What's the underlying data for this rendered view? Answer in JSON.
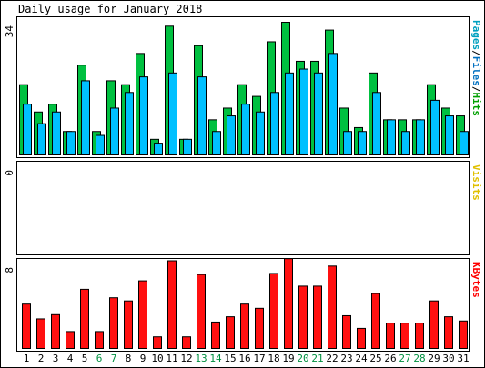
{
  "chart_data": {
    "type": "bar",
    "title": "Daily usage for January 2018",
    "categories": [
      "1",
      "2",
      "3",
      "4",
      "5",
      "6",
      "7",
      "8",
      "9",
      "10",
      "11",
      "12",
      "13",
      "14",
      "15",
      "16",
      "17",
      "18",
      "19",
      "20",
      "21",
      "22",
      "23",
      "24",
      "25",
      "26",
      "27",
      "28",
      "29",
      "30",
      "31"
    ],
    "weekend_days": [
      "6",
      "7",
      "13",
      "14",
      "20",
      "21",
      "27",
      "28"
    ],
    "panels": [
      {
        "name": "hits_files",
        "label_parts": [
          {
            "text": "Pages",
            "color": "#00a0c0"
          },
          {
            "text": "/",
            "color": "#000000"
          },
          {
            "text": "Files",
            "color": "#0070c0"
          },
          {
            "text": "/",
            "color": "#000000"
          },
          {
            "text": "Hits",
            "color": "#00a000"
          }
        ],
        "ymax_label": "34",
        "ymax": 34,
        "series": [
          {
            "name": "Hits",
            "color": "#00c040",
            "values": [
              18,
              11,
              13,
              6,
              23,
              6,
              19,
              18,
              26,
              4,
              33,
              4,
              28,
              9,
              12,
              18,
              15,
              29,
              34,
              24,
              24,
              32,
              12,
              7,
              21,
              9,
              9,
              9,
              18,
              12,
              10
            ]
          },
          {
            "name": "Files",
            "color": "#00c0ff",
            "values": [
              13,
              8,
              11,
              6,
              19,
              5,
              12,
              16,
              20,
              3,
              21,
              4,
              20,
              6,
              10,
              13,
              11,
              16,
              21,
              22,
              21,
              26,
              6,
              6,
              16,
              9,
              6,
              9,
              14,
              10,
              6
            ]
          },
          {
            "name": "Pages",
            "color": "#00c0ff",
            "values": [
              0,
              0,
              0,
              0,
              0,
              0,
              0,
              0,
              0,
              0,
              0,
              0,
              0,
              0,
              0,
              0,
              0,
              0,
              0,
              0,
              0,
              0,
              0,
              0,
              0,
              0,
              0,
              0,
              0,
              0,
              0
            ]
          }
        ]
      },
      {
        "name": "visits",
        "label_parts": [
          {
            "text": "Visits",
            "color": "#e0c000"
          }
        ],
        "ymax_label": "0",
        "ymax": 0,
        "series": [
          {
            "name": "Visits",
            "color": "#e0c000",
            "values": [
              0,
              0,
              0,
              0,
              0,
              0,
              0,
              0,
              0,
              0,
              0,
              0,
              0,
              0,
              0,
              0,
              0,
              0,
              0,
              0,
              0,
              0,
              0,
              0,
              0,
              0,
              0,
              0,
              0,
              0,
              0
            ]
          }
        ]
      },
      {
        "name": "kbytes",
        "label_parts": [
          {
            "text": "KBytes",
            "color": "#ff0000"
          }
        ],
        "ymax_label": "8",
        "ymax": 8,
        "series": [
          {
            "name": "KBytes",
            "color": "#ff1010",
            "values": [
              4.2,
              2.8,
              3.2,
              1.6,
              5.6,
              1.6,
              4.8,
              4.5,
              6.4,
              1.1,
              8.3,
              1.1,
              7.0,
              2.5,
              3.0,
              4.2,
              3.8,
              7.1,
              8.5,
              5.9,
              5.9,
              7.8,
              3.1,
              1.9,
              5.2,
              2.4,
              2.4,
              2.4,
              4.5,
              3.0,
              2.6
            ]
          }
        ]
      }
    ]
  }
}
